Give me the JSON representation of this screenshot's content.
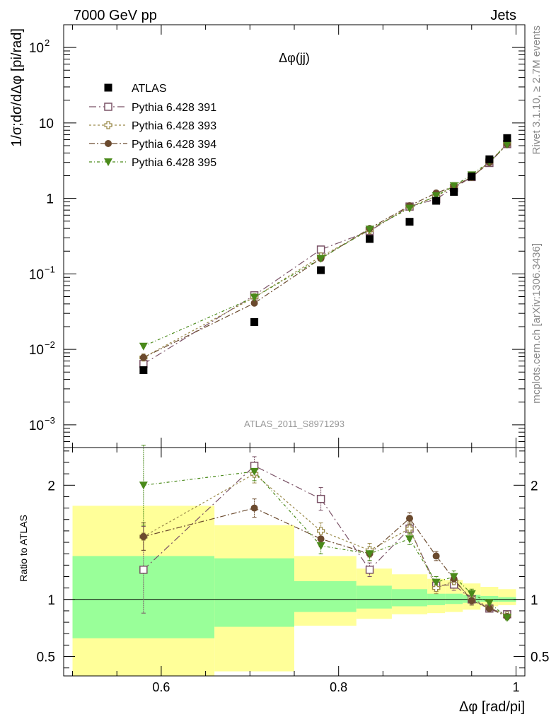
{
  "header": {
    "left": "7000 GeV pp",
    "right": "Jets"
  },
  "side_labels": {
    "rivet": "Rivet 3.1.10, ≥ 2.7M events",
    "mcplots": "mcplots.cern.ch [arXiv:1306.3436]"
  },
  "colors": {
    "data": "#000000",
    "pythia_391": "#7a5266",
    "pythia_393": "#9a8a4a",
    "pythia_394": "#6b4a2e",
    "pythia_395": "#4a8a1a",
    "band_inner": "#99ff99",
    "band_outer": "#ffff99",
    "watermark": "#999999"
  },
  "chart_data": {
    "type": "scatter",
    "title": "Δφ(jj)",
    "watermark": "ATLAS_2011_S8971293",
    "xlabel": "Δφ [rad/pi]",
    "ylabel": "1/σ;dσ/dΔφ [pi/rad]",
    "ratio_ylabel": "Ratio to ATLAS",
    "xlim": [
      0.49,
      1.01
    ],
    "ylim": [
      0.0005,
      200
    ],
    "yscale": "log",
    "ratio_ylim": [
      0.33,
      2.33
    ],
    "legend_position": "top-left",
    "x_ticks": [
      {
        "v": 0.6,
        "label": "0.6"
      },
      {
        "v": 0.8,
        "label": "0.8"
      },
      {
        "v": 1.0,
        "label": "1"
      }
    ],
    "y_ticks": [
      {
        "v": 0.001,
        "base": "10",
        "exp": "−3"
      },
      {
        "v": 0.01,
        "base": "10",
        "exp": "−2"
      },
      {
        "v": 0.1,
        "base": "10",
        "exp": "−1"
      },
      {
        "v": 1,
        "base": "1",
        "exp": ""
      },
      {
        "v": 10,
        "base": "10",
        "exp": ""
      },
      {
        "v": 100,
        "base": "10",
        "exp": "2"
      }
    ],
    "ratio_ticks": [
      {
        "v": 0.5,
        "label": "0.5"
      },
      {
        "v": 1,
        "label": "1"
      },
      {
        "v": 2,
        "label": "2"
      }
    ],
    "bins": [
      0.5,
      0.66,
      0.75,
      0.82,
      0.86,
      0.9,
      0.92,
      0.94,
      0.96,
      0.98,
      1.0
    ],
    "x": [
      0.58,
      0.705,
      0.78,
      0.835,
      0.88,
      0.91,
      0.93,
      0.95,
      0.97,
      0.99
    ],
    "data_values": [
      0.0053,
      0.023,
      0.112,
      0.29,
      0.49,
      0.93,
      1.22,
      1.95,
      3.3,
      6.3
    ],
    "band_inner": [
      [
        0.66,
        1.38
      ],
      [
        0.76,
        1.36
      ],
      [
        0.89,
        1.16
      ],
      [
        0.92,
        1.12
      ],
      [
        0.94,
        1.09
      ],
      [
        0.95,
        1.05
      ],
      [
        0.96,
        1.05
      ],
      [
        0.97,
        1.04
      ],
      [
        0.98,
        1.03
      ],
      [
        0.98,
        1.02
      ]
    ],
    "band_outer": [
      [
        0.33,
        1.82
      ],
      [
        0.37,
        1.65
      ],
      [
        0.77,
        1.38
      ],
      [
        0.83,
        1.27
      ],
      [
        0.87,
        1.22
      ],
      [
        0.88,
        1.18
      ],
      [
        0.89,
        1.17
      ],
      [
        0.91,
        1.14
      ],
      [
        0.94,
        1.11
      ],
      [
        0.95,
        1.09
      ]
    ],
    "series": [
      {
        "name": "Pythia 6.428 391",
        "marker": "open-square",
        "values": [
          0.0064,
          0.052,
          0.21,
          0.37,
          0.78,
          0.98,
          1.38,
          1.92,
          2.95,
          5.25
        ],
        "ratio": [
          1.26,
          2.17,
          1.88,
          1.26,
          1.62,
          1.12,
          1.13,
          1.0,
          0.92,
          0.87
        ],
        "ratio_err": [
          0.38,
          0.08,
          0.1,
          0.06,
          0.05,
          0.05,
          0.05,
          0.04,
          0.03,
          0.02
        ]
      },
      {
        "name": "Pythia 6.428 393",
        "marker": "open-cross",
        "values": [
          0.0078,
          0.049,
          0.17,
          0.38,
          0.78,
          1.06,
          1.45,
          1.93,
          3.05,
          5.3
        ],
        "ratio": [
          1.55,
          2.1,
          1.6,
          1.43,
          1.62,
          1.1,
          1.16,
          1.01,
          0.93,
          0.86
        ],
        "ratio_err": [
          0.12,
          0.08,
          0.07,
          0.06,
          0.05,
          0.05,
          0.05,
          0.04,
          0.03,
          0.02
        ]
      },
      {
        "name": "Pythia 6.428 394",
        "marker": "filled-circle",
        "values": [
          0.0078,
          0.041,
          0.16,
          0.4,
          0.8,
          1.18,
          1.44,
          1.92,
          2.98,
          5.2
        ],
        "ratio": [
          1.55,
          1.8,
          1.53,
          1.4,
          1.71,
          1.38,
          1.18,
          0.99,
          0.92,
          0.85
        ],
        "ratio_err": [
          0.12,
          0.08,
          0.07,
          0.06,
          0.05,
          0.04,
          0.04,
          0.04,
          0.03,
          0.02
        ]
      },
      {
        "name": "Pythia 6.428 395",
        "marker": "filled-triangle-down",
        "values": [
          0.011,
          0.049,
          0.16,
          0.39,
          0.74,
          1.08,
          1.47,
          2.05,
          3.08,
          5.2
        ],
        "ratio": [
          2.0,
          2.12,
          1.47,
          1.4,
          1.53,
          1.15,
          1.2,
          1.05,
          0.97,
          0.84
        ],
        "ratio_err": [
          0.35,
          0.08,
          0.07,
          0.06,
          0.05,
          0.05,
          0.05,
          0.04,
          0.03,
          0.02
        ]
      }
    ]
  }
}
